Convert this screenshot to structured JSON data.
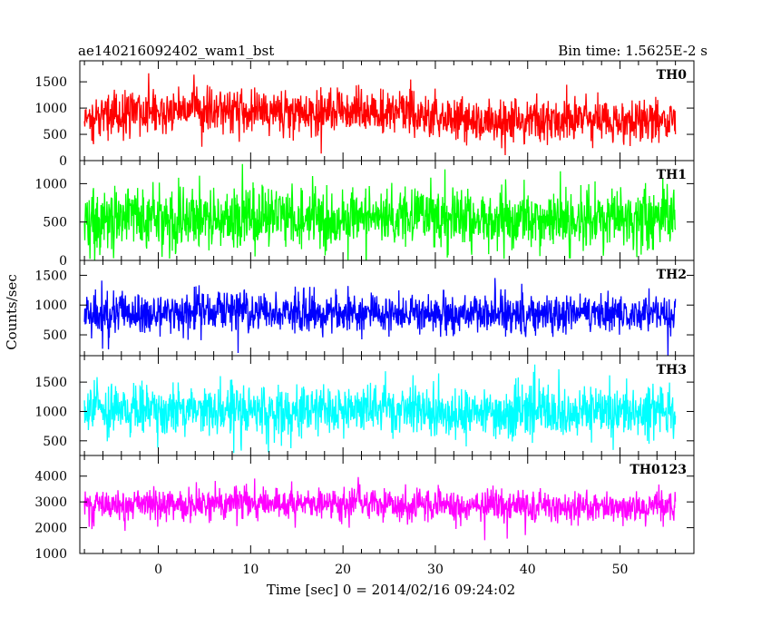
{
  "chart_data": {
    "type": "line",
    "title": "ae140216092402_wam1_bst",
    "bin_time_label": "Bin time: 1.5625E-2 s",
    "xlabel": "Time [sec] 0 = 2014/02/16 09:24:02",
    "ylabel": "Counts/sec",
    "xlim": [
      -8.5,
      58
    ],
    "x_data_range": [
      -8,
      56
    ],
    "x_ticks": [
      0,
      10,
      20,
      30,
      40,
      50
    ],
    "x_tick_labels": [
      "0",
      "10",
      "20",
      "30",
      "40",
      "50"
    ],
    "grid": false,
    "panels": [
      {
        "name": "TH0",
        "color": "#ff0000",
        "ylim": [
          0,
          1900
        ],
        "y_ticks": [
          0,
          500,
          1000,
          1500
        ],
        "y_tick_labels": [
          "0",
          "500",
          "1000",
          "1500"
        ],
        "profile_x": [
          -8,
          -6,
          -4,
          -2,
          0,
          2,
          4,
          6,
          8,
          10,
          12,
          14,
          16,
          18,
          20,
          22,
          24,
          26,
          28,
          30,
          32,
          34,
          36,
          38,
          40,
          42,
          44,
          46,
          48,
          50,
          52,
          54,
          56
        ],
        "profile_mean": [
          780,
          850,
          880,
          930,
          980,
          1000,
          1020,
          990,
          940,
          910,
          900,
          880,
          910,
          930,
          950,
          940,
          920,
          900,
          830,
          790,
          760,
          740,
          720,
          720,
          730,
          760,
          780,
          790,
          770,
          760,
          740,
          730,
          720
        ],
        "spread": 290
      },
      {
        "name": "TH1",
        "color": "#00ff00",
        "ylim": [
          0,
          1300
        ],
        "y_ticks": [
          0,
          500,
          1000
        ],
        "y_tick_labels": [
          "0",
          "500",
          "1000"
        ],
        "profile_x": [
          -8,
          0,
          10,
          20,
          30,
          40,
          56
        ],
        "profile_mean": [
          540,
          550,
          560,
          560,
          555,
          550,
          545
        ],
        "spread": 270
      },
      {
        "name": "TH2",
        "color": "#0000ff",
        "ylim": [
          150,
          1750
        ],
        "y_ticks": [
          500,
          1000,
          1500
        ],
        "y_tick_labels": [
          "500",
          "1000",
          "1500"
        ],
        "profile_x": [
          -8,
          0,
          10,
          20,
          30,
          40,
          56
        ],
        "profile_mean": [
          830,
          880,
          870,
          860,
          860,
          850,
          840
        ],
        "spread": 230
      },
      {
        "name": "TH3",
        "color": "#00ffff",
        "ylim": [
          250,
          1950
        ],
        "y_ticks": [
          500,
          1000,
          1500
        ],
        "y_tick_labels": [
          "500",
          "1000",
          "1500"
        ],
        "profile_x": [
          -8,
          0,
          10,
          20,
          30,
          40,
          56
        ],
        "profile_mean": [
          1000,
          1030,
          1030,
          1020,
          1010,
          1000,
          990
        ],
        "spread": 290
      },
      {
        "name": "TH0123",
        "color": "#ff00ff",
        "ylim": [
          1000,
          4800
        ],
        "y_ticks": [
          1000,
          2000,
          3000,
          4000
        ],
        "y_tick_labels": [
          "1000",
          "2000",
          "3000",
          "4000"
        ],
        "profile_x": [
          -8,
          0,
          10,
          20,
          30,
          40,
          56
        ],
        "profile_mean": [
          2850,
          2950,
          2950,
          2900,
          2850,
          2820,
          2800
        ],
        "spread": 420
      }
    ]
  }
}
